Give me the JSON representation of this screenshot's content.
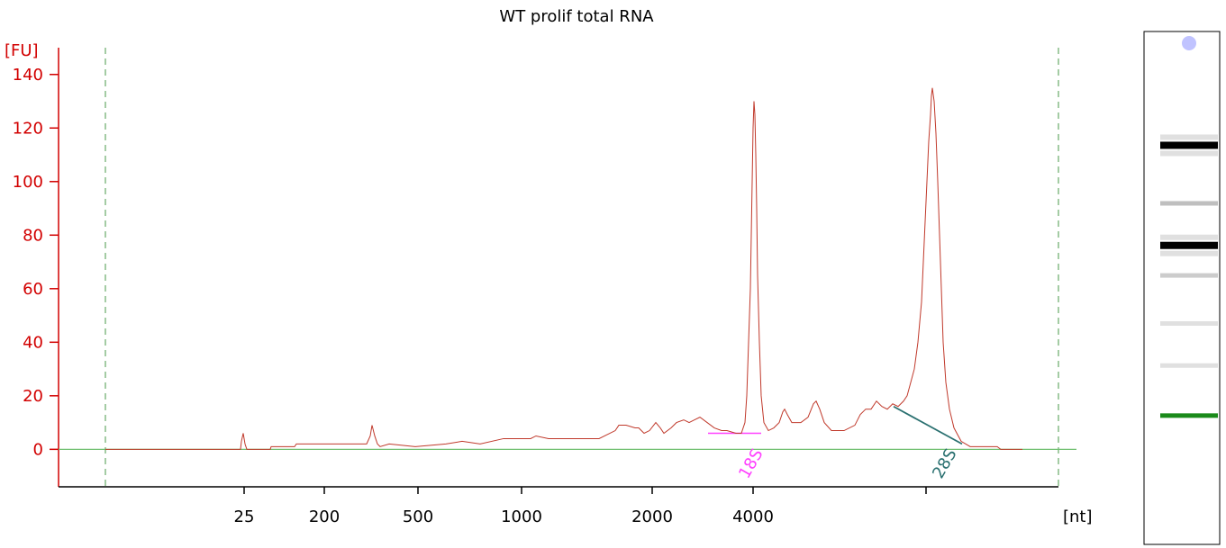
{
  "chart_data": {
    "type": "line",
    "title": "WT prolif total RNA",
    "ylabel": "[FU]",
    "xlabel": "[nt]",
    "ylim": [
      -14,
      150
    ],
    "yticks": [
      0,
      20,
      40,
      60,
      80,
      100,
      120,
      140
    ],
    "xticks": [
      "25",
      "200",
      "500",
      "1000",
      "2000",
      "4000"
    ],
    "grid": false,
    "series": [
      {
        "color": "#c0392b",
        "points": [
          [
            0,
            0
          ],
          [
            150,
            0
          ],
          [
            151,
            3
          ],
          [
            153,
            6
          ],
          [
            155,
            2
          ],
          [
            157,
            0
          ],
          [
            183,
            0
          ],
          [
            184,
            1
          ],
          [
            210,
            1
          ],
          [
            212,
            2
          ],
          [
            290,
            2
          ],
          [
            294,
            5
          ],
          [
            296,
            9
          ],
          [
            299,
            5
          ],
          [
            302,
            2
          ],
          [
            305,
            1
          ],
          [
            315,
            2
          ],
          [
            344,
            1
          ],
          [
            378,
            2
          ],
          [
            396,
            3
          ],
          [
            416,
            2
          ],
          [
            442,
            4
          ],
          [
            472,
            4
          ],
          [
            478,
            5
          ],
          [
            492,
            4
          ],
          [
            548,
            4
          ],
          [
            566,
            7
          ],
          [
            570,
            9
          ],
          [
            578,
            9
          ],
          [
            588,
            8
          ],
          [
            592,
            8
          ],
          [
            598,
            6
          ],
          [
            604,
            7
          ],
          [
            611,
            10
          ],
          [
            616,
            8
          ],
          [
            620,
            6
          ],
          [
            628,
            8
          ],
          [
            634,
            10
          ],
          [
            642,
            11
          ],
          [
            648,
            10
          ],
          [
            654,
            11
          ],
          [
            660,
            12
          ],
          [
            668,
            10
          ],
          [
            676,
            8
          ],
          [
            684,
            7
          ],
          [
            690,
            7
          ],
          [
            700,
            6
          ],
          [
            706,
            6
          ],
          [
            710,
            10
          ],
          [
            712,
            20
          ],
          [
            714,
            40
          ],
          [
            716,
            60
          ],
          [
            717,
            80
          ],
          [
            718,
            100
          ],
          [
            719,
            120
          ],
          [
            720,
            130
          ],
          [
            721,
            125
          ],
          [
            722,
            110
          ],
          [
            723,
            90
          ],
          [
            724,
            65
          ],
          [
            726,
            40
          ],
          [
            728,
            20
          ],
          [
            731,
            10
          ],
          [
            736,
            7
          ],
          [
            742,
            8
          ],
          [
            748,
            10
          ],
          [
            752,
            14
          ],
          [
            754,
            15
          ],
          [
            757,
            13
          ],
          [
            762,
            10
          ],
          [
            772,
            10
          ],
          [
            780,
            12
          ],
          [
            786,
            17
          ],
          [
            789,
            18
          ],
          [
            793,
            15
          ],
          [
            798,
            10
          ],
          [
            806,
            7
          ],
          [
            820,
            7
          ],
          [
            832,
            9
          ],
          [
            838,
            13
          ],
          [
            844,
            15
          ],
          [
            850,
            15
          ],
          [
            856,
            18
          ],
          [
            862,
            16
          ],
          [
            868,
            15
          ],
          [
            874,
            17
          ],
          [
            880,
            16
          ],
          [
            886,
            18
          ],
          [
            890,
            20
          ],
          [
            894,
            25
          ],
          [
            898,
            30
          ],
          [
            902,
            40
          ],
          [
            906,
            55
          ],
          [
            908,
            70
          ],
          [
            910,
            85
          ],
          [
            912,
            100
          ],
          [
            914,
            115
          ],
          [
            916,
            125
          ],
          [
            917,
            132
          ],
          [
            918,
            135
          ],
          [
            920,
            130
          ],
          [
            922,
            118
          ],
          [
            924,
            100
          ],
          [
            926,
            80
          ],
          [
            928,
            60
          ],
          [
            930,
            40
          ],
          [
            933,
            25
          ],
          [
            937,
            15
          ],
          [
            942,
            8
          ],
          [
            950,
            3
          ],
          [
            960,
            1
          ],
          [
            990,
            1
          ],
          [
            994,
            0
          ],
          [
            1018,
            0
          ]
        ]
      }
    ],
    "peak_markers": [
      {
        "label": "18S",
        "color": "#ff40ff"
      },
      {
        "label": "28S",
        "color": "#2a7070"
      }
    ],
    "baseline_color": "#6fbf6f",
    "gel_lane": {
      "bands": [
        {
          "position": 0.0,
          "darkness": 0.25,
          "color": "#b0b4ff"
        },
        {
          "position": 0.255,
          "darkness": 1.0,
          "color": "#000000"
        },
        {
          "position": 0.4,
          "darkness": 0.25,
          "color": "#000000"
        },
        {
          "position": 0.505,
          "darkness": 1.0,
          "color": "#000000"
        },
        {
          "position": 0.58,
          "darkness": 0.2,
          "color": "#000000"
        },
        {
          "position": 0.7,
          "darkness": 0.12,
          "color": "#000000"
        },
        {
          "position": 0.805,
          "darkness": 0.12,
          "color": "#000000"
        },
        {
          "position": 0.93,
          "darkness": 1.0,
          "color": "#1a8a1a"
        }
      ]
    }
  }
}
